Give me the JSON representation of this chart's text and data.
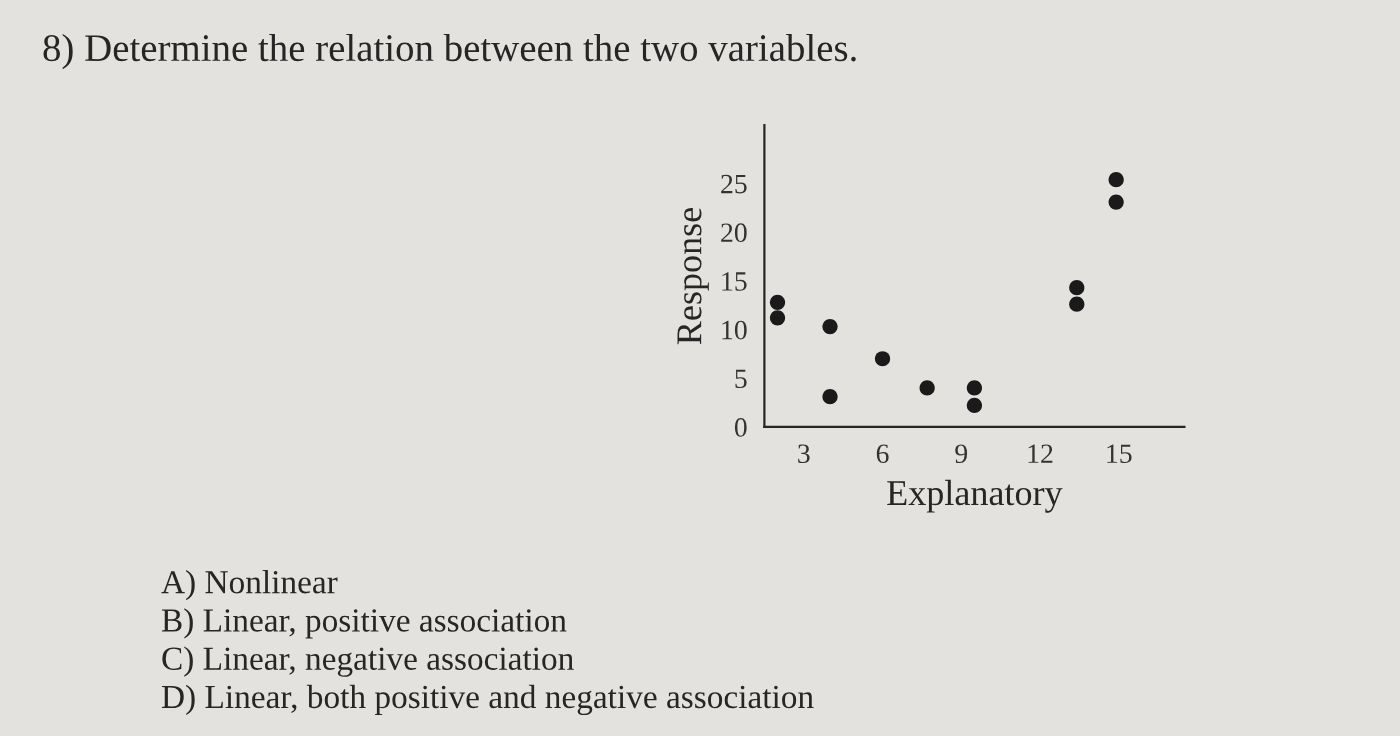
{
  "chart_data": {
    "type": "scatter",
    "title": "8) Determine the relation between the two variables.",
    "xlabel": "Explanatory",
    "ylabel": "Response",
    "series": [
      {
        "color": "#1a1a1a",
        "x": [
          2,
          2,
          4,
          4,
          6,
          7.7,
          9.5,
          9.5,
          13.4,
          13.4,
          14.9,
          14.9
        ],
        "values": [
          12.8,
          11.2,
          10.3,
          3.1,
          7,
          4,
          4,
          2.2,
          14.3,
          12.6,
          25.4,
          23.1
        ]
      }
    ],
    "xlim": [
      1.5,
      17.5
    ],
    "ylim": [
      0,
      31
    ],
    "xticks": [
      3,
      6,
      9,
      12,
      15
    ],
    "yticks": [
      0,
      5,
      10,
      15,
      20,
      25
    ],
    "marker": "circle",
    "grid": false,
    "annotations": [
      "A) Nonlinear",
      "B) Linear, positive association",
      "C) Linear, negative association",
      "D) Linear, both positive and negative association"
    ]
  }
}
